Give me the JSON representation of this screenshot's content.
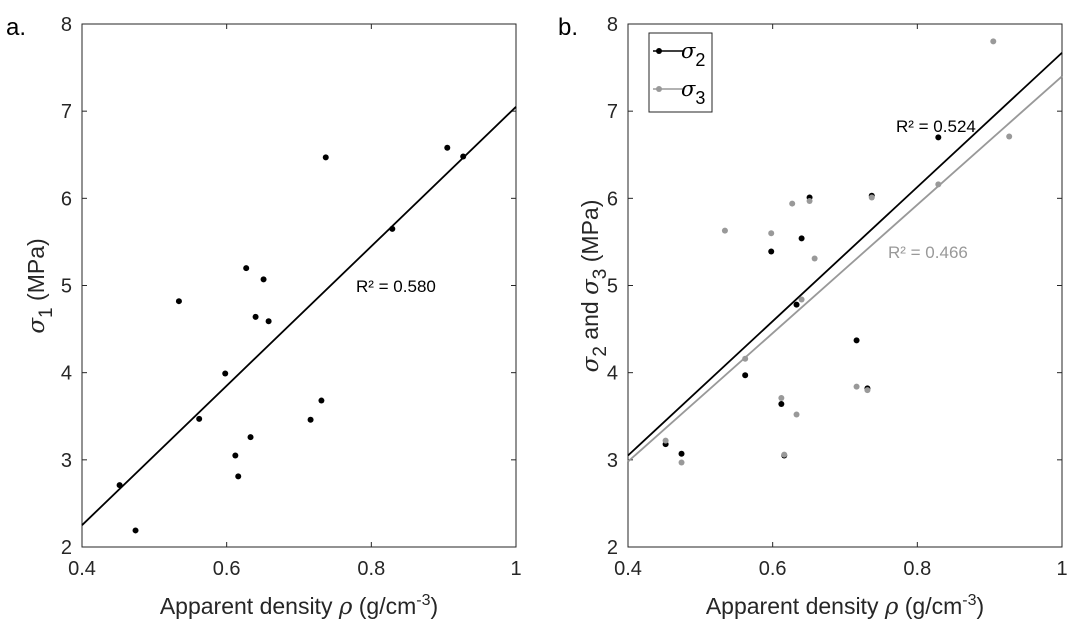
{
  "chart_data": [
    {
      "type": "scatter",
      "panel_label": "a.",
      "xlabel": {
        "text": "Apparent density ",
        "sym": "ρ",
        "unit": " (g/cm",
        "exp": "-3",
        "close": ")"
      },
      "ylabel": {
        "sym": "σ",
        "sub": "1",
        "unit": " (MPa)"
      },
      "xlim": [
        0.4,
        1.0
      ],
      "ylim": [
        2,
        8
      ],
      "xticks": [
        "0.4",
        "0.6",
        "0.8",
        "1"
      ],
      "yticks": [
        "2",
        "3",
        "4",
        "5",
        "6",
        "7",
        "8"
      ],
      "grid": false,
      "series": [
        {
          "color": "#000000",
          "points": [
            [
              0.452,
              2.71
            ],
            [
              0.474,
              2.19
            ],
            [
              0.534,
              4.82
            ],
            [
              0.562,
              3.47
            ],
            [
              0.598,
              3.99
            ],
            [
              0.612,
              3.05
            ],
            [
              0.616,
              2.81
            ],
            [
              0.627,
              5.2
            ],
            [
              0.633,
              3.26
            ],
            [
              0.64,
              4.64
            ],
            [
              0.651,
              5.07
            ],
            [
              0.658,
              4.59
            ],
            [
              0.716,
              3.46
            ],
            [
              0.731,
              3.68
            ],
            [
              0.737,
              6.47
            ],
            [
              0.829,
              5.65
            ],
            [
              0.905,
              6.58
            ],
            [
              0.927,
              6.48
            ]
          ],
          "fit": {
            "x": [
              0.4,
              1.0
            ],
            "y": [
              2.25,
              7.05
            ]
          },
          "r2_label": "R² = 0.580"
        }
      ]
    },
    {
      "type": "scatter",
      "panel_label": "b.",
      "xlabel": {
        "text": "Apparent density ",
        "sym": "ρ",
        "unit": " (g/cm",
        "exp": "-3",
        "close": ")"
      },
      "ylabel": {
        "sym1": "σ",
        "sub1": "2",
        "mid": " and ",
        "sym2": "σ",
        "sub2": "3",
        "unit": " (MPa)"
      },
      "xlim": [
        0.4,
        1.0
      ],
      "ylim": [
        2,
        8
      ],
      "xticks": [
        "0.4",
        "0.6",
        "0.8",
        "1"
      ],
      "yticks": [
        "2",
        "3",
        "4",
        "5",
        "6",
        "7",
        "8"
      ],
      "grid": false,
      "legend": {
        "position": "top-left"
      },
      "series": [
        {
          "name_sym": "σ",
          "name_sub": "2",
          "color": "#000000",
          "points": [
            [
              0.452,
              3.18
            ],
            [
              0.474,
              3.07
            ],
            [
              0.562,
              3.97
            ],
            [
              0.598,
              5.39
            ],
            [
              0.612,
              3.64
            ],
            [
              0.616,
              3.05
            ],
            [
              0.633,
              4.78
            ],
            [
              0.64,
              5.54
            ],
            [
              0.651,
              6.01
            ],
            [
              0.716,
              4.37
            ],
            [
              0.731,
              3.82
            ],
            [
              0.737,
              6.03
            ],
            [
              0.829,
              6.7
            ]
          ],
          "fit": {
            "x": [
              0.4,
              1.0
            ],
            "y": [
              3.05,
              7.67
            ]
          },
          "r2_label": "R² = 0.524"
        },
        {
          "name_sym": "σ",
          "name_sub": "3",
          "color": "#999999",
          "points": [
            [
              0.452,
              3.22
            ],
            [
              0.474,
              2.97
            ],
            [
              0.534,
              5.63
            ],
            [
              0.562,
              4.16
            ],
            [
              0.598,
              5.6
            ],
            [
              0.612,
              3.71
            ],
            [
              0.616,
              3.06
            ],
            [
              0.627,
              5.94
            ],
            [
              0.633,
              3.52
            ],
            [
              0.64,
              4.84
            ],
            [
              0.651,
              5.97
            ],
            [
              0.658,
              5.31
            ],
            [
              0.716,
              3.84
            ],
            [
              0.731,
              3.8
            ],
            [
              0.737,
              6.01
            ],
            [
              0.829,
              6.16
            ],
            [
              0.905,
              7.8
            ],
            [
              0.927,
              6.71
            ]
          ],
          "fit": {
            "x": [
              0.4,
              1.0
            ],
            "y": [
              2.98,
              7.4
            ]
          },
          "r2_label": "R² = 0.466"
        }
      ]
    }
  ]
}
